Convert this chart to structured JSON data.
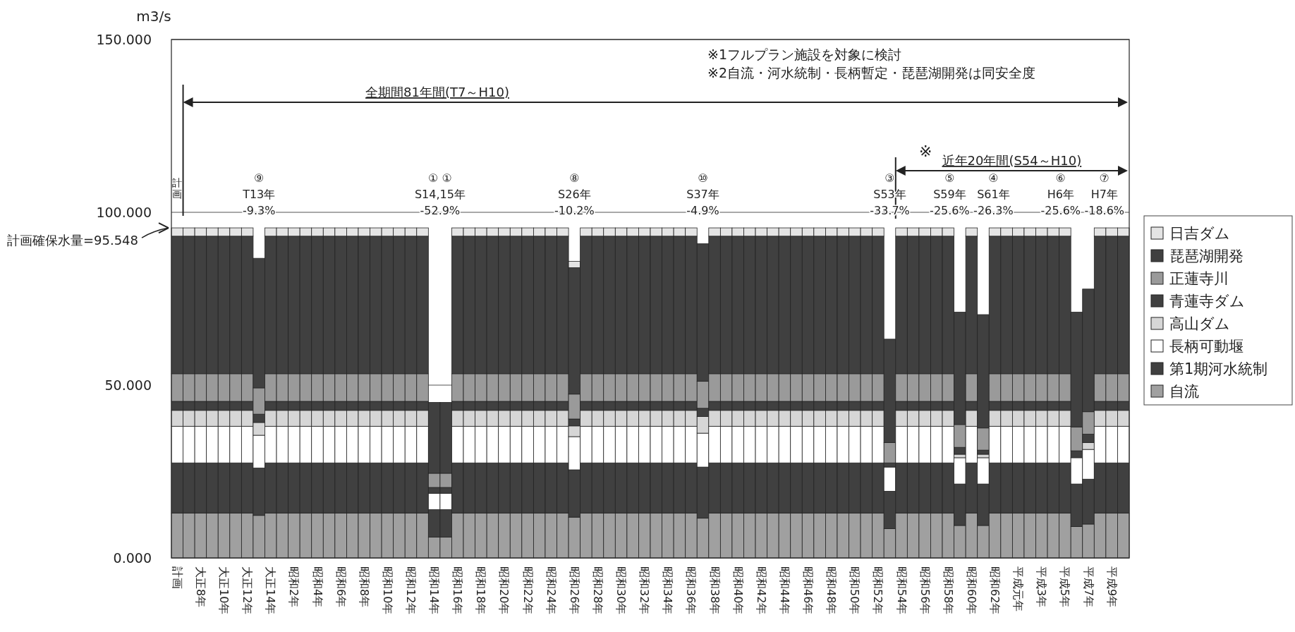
{
  "chart_data": {
    "type": "bar",
    "stacked": true,
    "ylabel": "m3/s",
    "categories": [
      "計画",
      null,
      "大正8年",
      null,
      "大正10年",
      null,
      "大正12年",
      null,
      "大正14年",
      null,
      "昭和2年",
      null,
      "昭和4年",
      null,
      "昭和6年",
      null,
      "昭和8年",
      null,
      "昭和10年",
      null,
      "昭和12年",
      null,
      "昭和14年",
      null,
      "昭和16年",
      null,
      "昭和18年",
      null,
      "昭和20年",
      null,
      "昭和22年",
      null,
      "昭和24年",
      null,
      "昭和26年",
      null,
      "昭和28年",
      null,
      "昭和30年",
      null,
      "昭和32年",
      null,
      "昭和34年",
      null,
      "昭和36年",
      null,
      "昭和38年",
      null,
      "昭和40年",
      null,
      "昭和42年",
      null,
      "昭和44年",
      null,
      "昭和46年",
      null,
      "昭和48年",
      null,
      "昭和50年",
      null,
      "昭和52年",
      null,
      "昭和54年",
      null,
      "昭和56年",
      null,
      "昭和58年",
      null,
      "昭和60年",
      null,
      "昭和62年",
      null,
      "平成元年",
      null,
      "平成3年",
      null,
      "平成5年",
      null,
      "平成7年",
      null,
      "平成9年",
      null
    ],
    "series": [
      {
        "name": "自流",
        "color": "#a0a0a0",
        "values": [
          13,
          13,
          13,
          13,
          13,
          13,
          13,
          12.3,
          13,
          13,
          13,
          13,
          13,
          13,
          13,
          13,
          13,
          13,
          13,
          13,
          13,
          13,
          6,
          6,
          13,
          13,
          13,
          13,
          13,
          13,
          13,
          13,
          13,
          13,
          11.8,
          13,
          13,
          13,
          13,
          13,
          13,
          13,
          13,
          13,
          13,
          11.5,
          13,
          13,
          13,
          13,
          13,
          13,
          13,
          13,
          13,
          13,
          13,
          13,
          13,
          13,
          13,
          8.5,
          13,
          13,
          13,
          13,
          13,
          9.4,
          13,
          9.4,
          13,
          13,
          13,
          13,
          13,
          13,
          13,
          9.1,
          9.8,
          13,
          13,
          13
        ]
      },
      {
        "name": "第1期河水統制",
        "color": "#404040",
        "values": [
          14.5,
          14.5,
          14.5,
          14.5,
          14.5,
          14.5,
          14.5,
          13.7,
          14.5,
          14.5,
          14.5,
          14.5,
          14.5,
          14.5,
          14.5,
          14.5,
          14.5,
          14.5,
          14.5,
          14.5,
          14.5,
          14.5,
          8,
          8,
          14.5,
          14.5,
          14.5,
          14.5,
          14.5,
          14.5,
          14.5,
          14.5,
          14.5,
          14.5,
          13.7,
          14.5,
          14.5,
          14.5,
          14.5,
          14.5,
          14.5,
          14.5,
          14.5,
          14.5,
          14.5,
          14.8,
          14.5,
          14.5,
          14.5,
          14.5,
          14.5,
          14.5,
          14.5,
          14.5,
          14.5,
          14.5,
          14.5,
          14.5,
          14.5,
          14.5,
          14.5,
          10.8,
          14.5,
          14.5,
          14.5,
          14.5,
          14.5,
          12,
          14.5,
          12,
          14.5,
          14.5,
          14.5,
          14.5,
          14.5,
          14.5,
          14.5,
          12.3,
          13,
          14.5,
          14.5,
          14.5
        ]
      },
      {
        "name": "長柄可動堰",
        "color": "#ffffff",
        "values": [
          10.6,
          10.6,
          10.6,
          10.6,
          10.6,
          10.6,
          10.6,
          9.5,
          10.6,
          10.6,
          10.6,
          10.6,
          10.6,
          10.6,
          10.6,
          10.6,
          10.6,
          10.6,
          10.6,
          10.6,
          10.6,
          10.6,
          4.7,
          4.7,
          10.6,
          10.6,
          10.6,
          10.6,
          10.6,
          10.6,
          10.6,
          10.6,
          10.6,
          10.6,
          9.6,
          10.6,
          10.6,
          10.6,
          10.6,
          10.6,
          10.6,
          10.6,
          10.6,
          10.6,
          10.6,
          9.8,
          10.6,
          10.6,
          10.6,
          10.6,
          10.6,
          10.6,
          10.6,
          10.6,
          10.6,
          10.6,
          10.6,
          10.6,
          10.6,
          10.6,
          10.6,
          7,
          10.6,
          10.6,
          10.6,
          10.6,
          10.6,
          7.6,
          10.6,
          7.6,
          10.6,
          10.6,
          10.6,
          10.6,
          10.6,
          10.6,
          10.6,
          7.6,
          8.6,
          10.6,
          10.6,
          10.6
        ]
      },
      {
        "name": "高山ダム",
        "color": "#d6d6d6",
        "values": [
          4.6,
          4.6,
          4.6,
          4.6,
          4.6,
          4.6,
          4.6,
          3.7,
          4.6,
          4.6,
          4.6,
          4.6,
          4.6,
          4.6,
          4.6,
          4.6,
          4.6,
          4.6,
          4.6,
          4.6,
          4.6,
          4.6,
          0,
          0,
          4.6,
          4.6,
          4.6,
          4.6,
          4.6,
          4.6,
          4.6,
          4.6,
          4.6,
          4.6,
          3.1,
          4.6,
          4.6,
          4.6,
          4.6,
          4.6,
          4.6,
          4.6,
          4.6,
          4.6,
          4.6,
          4.8,
          4.6,
          4.6,
          4.6,
          4.6,
          4.6,
          4.6,
          4.6,
          4.6,
          4.6,
          4.6,
          4.6,
          4.6,
          4.6,
          4.6,
          4.6,
          0,
          4.6,
          4.6,
          4.6,
          4.6,
          4.6,
          1,
          4.6,
          1,
          4.6,
          4.6,
          4.6,
          4.6,
          4.6,
          4.6,
          4.6,
          0,
          2,
          4.6,
          4.6,
          4.6
        ]
      },
      {
        "name": "青蓮寺ダム",
        "color": "#404040",
        "values": [
          2.6,
          2.6,
          2.6,
          2.6,
          2.6,
          2.6,
          2.6,
          2.4,
          2.6,
          2.6,
          2.6,
          2.6,
          2.6,
          2.6,
          2.6,
          2.6,
          2.6,
          2.6,
          2.6,
          2.6,
          2.6,
          2.6,
          1.7,
          1.7,
          2.6,
          2.6,
          2.6,
          2.6,
          2.6,
          2.6,
          2.6,
          2.6,
          2.6,
          2.6,
          2,
          2.6,
          2.6,
          2.6,
          2.6,
          2.6,
          2.6,
          2.6,
          2.6,
          2.6,
          2.6,
          2.4,
          2.6,
          2.6,
          2.6,
          2.6,
          2.6,
          2.6,
          2.6,
          2.6,
          2.6,
          2.6,
          2.6,
          2.6,
          2.6,
          2.6,
          2.6,
          1.2,
          2.6,
          2.6,
          2.6,
          2.6,
          2.6,
          2,
          2.6,
          1.2,
          2.6,
          2.6,
          2.6,
          2.6,
          2.6,
          2.6,
          2.6,
          2,
          2.4,
          2.6,
          2.6,
          2.6
        ]
      },
      {
        "name": "正蓮寺川",
        "color": "#9a9a9a",
        "values": [
          8,
          8,
          8,
          8,
          8,
          8,
          8,
          7.6,
          8,
          8,
          8,
          8,
          8,
          8,
          8,
          8,
          8,
          8,
          8,
          8,
          8,
          8,
          4.1,
          4.1,
          8,
          8,
          8,
          8,
          8,
          8,
          8,
          8,
          8,
          8,
          7.2,
          8,
          8,
          8,
          8,
          8,
          8,
          8,
          8,
          8,
          8,
          7.8,
          8,
          8,
          8,
          8,
          8,
          8,
          8,
          8,
          8,
          8,
          8,
          8,
          8,
          8,
          8,
          5.9,
          8,
          8,
          8,
          8,
          8,
          6.6,
          8,
          6.4,
          8,
          8,
          8,
          8,
          8,
          8,
          8,
          6.9,
          6.5,
          8,
          8,
          8
        ]
      },
      {
        "name": "琵琶湖開発",
        "color": "#404040",
        "values": [
          39.8,
          39.8,
          39.8,
          39.8,
          39.8,
          39.8,
          39.8,
          37.5,
          39.8,
          39.8,
          39.8,
          39.8,
          39.8,
          39.8,
          39.8,
          39.8,
          39.8,
          39.8,
          39.8,
          39.8,
          39.8,
          39.8,
          20.5,
          20.5,
          39.8,
          39.8,
          39.8,
          39.8,
          39.8,
          39.8,
          39.8,
          39.8,
          39.8,
          39.8,
          36.6,
          39.8,
          39.8,
          39.8,
          39.8,
          39.8,
          39.8,
          39.8,
          39.8,
          39.8,
          39.8,
          39.8,
          39.8,
          39.8,
          39.8,
          39.8,
          39.8,
          39.8,
          39.8,
          39.8,
          39.8,
          39.8,
          39.8,
          39.8,
          39.8,
          39.8,
          39.8,
          29.9,
          39.8,
          39.8,
          39.8,
          39.8,
          39.8,
          32.5,
          39.8,
          32.8,
          39.8,
          39.8,
          39.8,
          39.8,
          39.8,
          39.8,
          39.8,
          33.2,
          35.5,
          39.8,
          39.8,
          39.8
        ]
      },
      {
        "name": "日吉ダム",
        "color": "#e4e4e4",
        "values": [
          2.4,
          2.4,
          2.4,
          2.4,
          2.4,
          2.4,
          2.4,
          0,
          2.4,
          2.4,
          2.4,
          2.4,
          2.4,
          2.4,
          2.4,
          2.4,
          2.4,
          2.4,
          2.4,
          2.4,
          2.4,
          2.4,
          0,
          0,
          2.4,
          2.4,
          2.4,
          2.4,
          2.4,
          2.4,
          2.4,
          2.4,
          2.4,
          2.4,
          1.8,
          2.4,
          2.4,
          2.4,
          2.4,
          2.4,
          2.4,
          2.4,
          2.4,
          2.4,
          2.4,
          0,
          2.4,
          2.4,
          2.4,
          2.4,
          2.4,
          2.4,
          2.4,
          2.4,
          2.4,
          2.4,
          2.4,
          2.4,
          2.4,
          2.4,
          2.4,
          0,
          2.4,
          2.4,
          2.4,
          2.4,
          2.4,
          0,
          2.4,
          0,
          2.4,
          2.4,
          2.4,
          2.4,
          2.4,
          2.4,
          2.4,
          0,
          0,
          2.4,
          2.4,
          2.4
        ]
      }
    ],
    "ylim": [
      0,
      150
    ],
    "yticks": [
      {
        "value": 0,
        "label": "0.000"
      },
      {
        "value": 50,
        "label": "50.000"
      },
      {
        "value": 100,
        "label": "100.000"
      },
      {
        "value": 150,
        "label": "150.000"
      }
    ],
    "grid": "y",
    "legend": "right",
    "annotations": [
      "※1フルプラン施設を対象に検討",
      "※2自流・河水統制・長柄暫定・琵琶湖開発は同安全度",
      "全期間81年間(T7～H10)",
      "近年20年間(S54～H10)",
      "※",
      "⑨\nT13年\n-9.3%",
      "① ①\nS14,15年\n-52.9%",
      "⑧\nS26年\n-10.2%",
      "⑩\nS37年\n-4.9%",
      "③\nS53年\n-33.7%",
      "⑤\nS59年\n-25.6%",
      "④\nS61年\n-26.3%",
      "⑥\nH6年\n-25.6%",
      "⑦\nH7年\n-18.6%",
      "計画確保水量=95.548",
      "計画"
    ]
  }
}
